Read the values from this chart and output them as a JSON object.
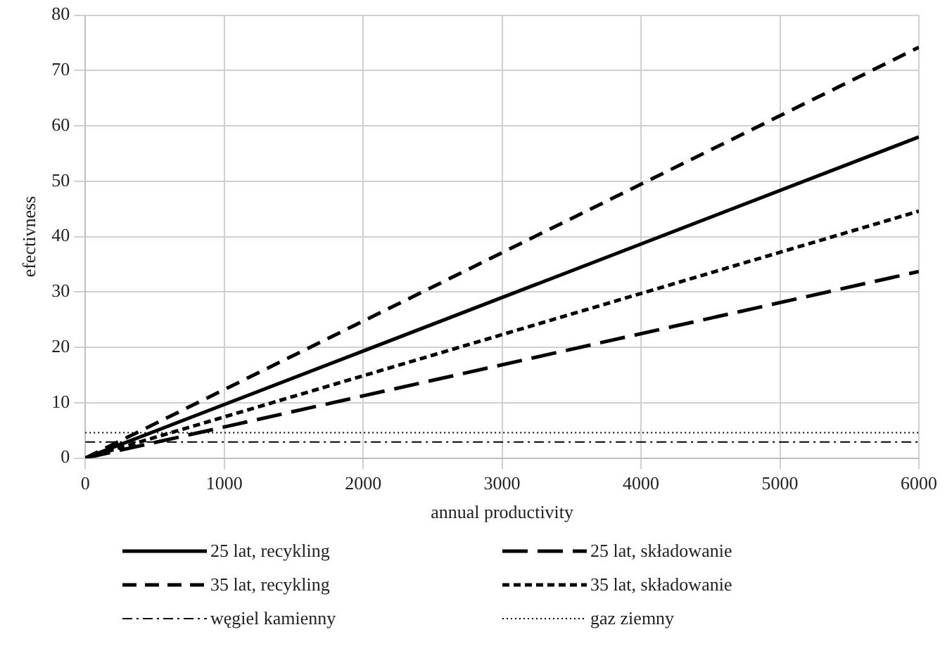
{
  "chart_data": {
    "type": "line",
    "xlabel": "annual productivity",
    "ylabel": "efectivness",
    "xlim": [
      0,
      6000
    ],
    "xticks": [
      0,
      1000,
      2000,
      3000,
      4000,
      5000,
      6000
    ],
    "ylim": [
      0,
      80
    ],
    "yticks": [
      0,
      10,
      20,
      30,
      40,
      50,
      60,
      70,
      80
    ],
    "grid": true,
    "legend": "bottom",
    "marker": "none",
    "x": [
      0,
      6000
    ],
    "series": [
      {
        "name": "25 lat, recykling",
        "color": "#000000",
        "line_style": "solid",
        "values": [
          0,
          58
        ]
      },
      {
        "name": "25 lat, składowanie",
        "color": "#000000",
        "line_style": "longdash",
        "values": [
          0,
          33.7
        ]
      },
      {
        "name": "35 lat, recykling",
        "color": "#000000",
        "line_style": "dashed",
        "values": [
          0,
          74.2
        ]
      },
      {
        "name": "35 lat, składowanie",
        "color": "#000000",
        "line_style": "shortdash",
        "values": [
          0,
          44.6
        ]
      },
      {
        "name": "węgiel kamienny",
        "color": "#000000",
        "line_style": "dashdot",
        "values": [
          2.9,
          2.9
        ]
      },
      {
        "name": "gaz ziemny",
        "color": "#000000",
        "line_style": "dotted",
        "values": [
          4.6,
          4.6
        ]
      }
    ]
  }
}
